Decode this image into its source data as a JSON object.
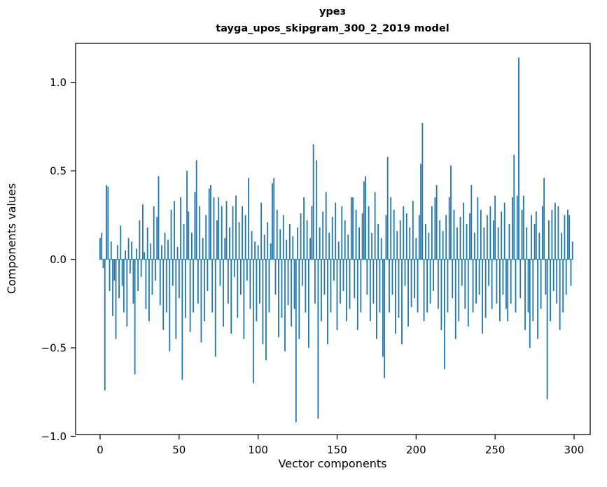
{
  "figure": {
    "title_line1": "урез",
    "title_line2": "tayga_upos_skipgram_300_2_2019 model",
    "xlabel": "Vector components",
    "ylabel": "Components values"
  },
  "chart_data": {
    "type": "bar",
    "title": "урез — tayga_upos_skipgram_300_2_2019 model",
    "xlabel": "Vector components",
    "ylabel": "Components values",
    "color": "#1f77b4",
    "grid": false,
    "legend": "none",
    "xlim": [
      -15.5,
      310.2
    ],
    "ylim": [
      -0.99,
      1.22
    ],
    "x_ticks": [
      0,
      50,
      100,
      150,
      200,
      250,
      300
    ],
    "y_ticks": [
      -1.0,
      -0.5,
      0.0,
      0.5,
      1.0
    ],
    "x": {
      "start": 0,
      "step": 1
    },
    "values": [
      0.12,
      0.15,
      -0.05,
      -0.74,
      0.42,
      0.41,
      -0.18,
      0.1,
      -0.32,
      -0.12,
      -0.45,
      0.08,
      -0.22,
      0.19,
      -0.15,
      -0.3,
      0.05,
      -0.38,
      0.12,
      -0.08,
      0.1,
      -0.25,
      -0.65,
      0.06,
      -0.18,
      0.22,
      -0.1,
      0.31,
      0.04,
      -0.28,
      0.18,
      -0.35,
      0.09,
      -0.2,
      0.3,
      -0.12,
      0.24,
      0.47,
      -0.26,
      0.08,
      -0.4,
      0.15,
      -0.3,
      0.11,
      -0.52,
      0.28,
      -0.15,
      0.33,
      -0.45,
      0.07,
      -0.22,
      0.35,
      -0.68,
      0.2,
      -0.33,
      0.5,
      0.27,
      -0.41,
      0.15,
      -0.3,
      0.38,
      0.56,
      -0.25,
      0.3,
      -0.47,
      0.12,
      -0.35,
      0.25,
      -0.18,
      0.4,
      0.42,
      -0.3,
      0.35,
      -0.55,
      0.22,
      0.35,
      -0.15,
      0.3,
      -0.38,
      0.12,
      0.33,
      -0.25,
      0.18,
      -0.42,
      0.3,
      -0.1,
      0.36,
      -0.33,
      0.21,
      -0.2,
      0.3,
      -0.45,
      0.25,
      -0.12,
      0.46,
      -0.28,
      0.16,
      -0.7,
      0.1,
      -0.35,
      0.08,
      -0.25,
      0.32,
      -0.48,
      0.14,
      -0.57,
      0.21,
      -0.3,
      0.09,
      0.43,
      0.46,
      -0.2,
      0.28,
      -0.44,
      0.17,
      -0.33,
      0.25,
      -0.52,
      0.11,
      -0.26,
      0.2,
      -0.38,
      0.13,
      -0.28,
      -0.92,
      0.18,
      -0.45,
      0.26,
      -0.15,
      0.35,
      -0.3,
      0.22,
      -0.5,
      0.12,
      0.3,
      0.65,
      -0.25,
      0.56,
      -0.9,
      0.18,
      -0.35,
      0.27,
      -0.2,
      0.38,
      -0.48,
      0.15,
      -0.3,
      0.24,
      -0.12,
      0.32,
      -0.4,
      0.1,
      -0.25,
      0.3,
      -0.18,
      0.22,
      -0.35,
      0.14,
      -0.28,
      0.35,
      0.35,
      -0.22,
      0.28,
      -0.4,
      0.18,
      -0.3,
      0.26,
      0.44,
      0.47,
      -0.2,
      0.3,
      -0.35,
      0.15,
      -0.25,
      0.38,
      -0.45,
      0.2,
      -0.3,
      0.12,
      -0.55,
      -0.67,
      0.25,
      0.58,
      -0.3,
      0.35,
      -0.2,
      0.28,
      -0.42,
      0.16,
      -0.33,
      0.22,
      -0.48,
      0.3,
      -0.15,
      0.26,
      -0.38,
      0.18,
      -0.27,
      0.33,
      -0.22,
      0.12,
      -0.3,
      0.25,
      0.54,
      0.77,
      -0.35,
      0.2,
      -0.3,
      0.15,
      -0.25,
      0.3,
      -0.18,
      0.35,
      0.42,
      -0.28,
      0.22,
      -0.4,
      0.16,
      -0.62,
      0.25,
      -0.3,
      0.35,
      0.53,
      -0.22,
      0.28,
      -0.45,
      0.18,
      -0.35,
      0.24,
      -0.15,
      0.32,
      -0.28,
      0.2,
      -0.38,
      0.26,
      0.42,
      -0.3,
      0.15,
      -0.25,
      0.35,
      -0.2,
      0.28,
      -0.42,
      0.18,
      -0.33,
      0.25,
      -0.15,
      0.3,
      -0.28,
      0.22,
      0.36,
      -0.25,
      0.18,
      -0.35,
      0.27,
      -0.2,
      0.32,
      -0.28,
      -0.35,
      0.2,
      -0.25,
      0.35,
      0.59,
      -0.3,
      0.36,
      1.14,
      -0.22,
      0.28,
      0.36,
      -0.4,
      0.18,
      -0.3,
      -0.5,
      0.25,
      -0.35,
      0.2,
      0.27,
      -0.45,
      0.15,
      -0.28,
      0.3,
      0.46,
      -0.2,
      -0.79,
      0.22,
      -0.35,
      0.28,
      -0.18,
      0.32,
      -0.25,
      0.3,
      -0.4,
      0.15,
      -0.3,
      0.25,
      -0.2,
      0.28,
      0.25,
      -0.15,
      0.1
    ]
  }
}
